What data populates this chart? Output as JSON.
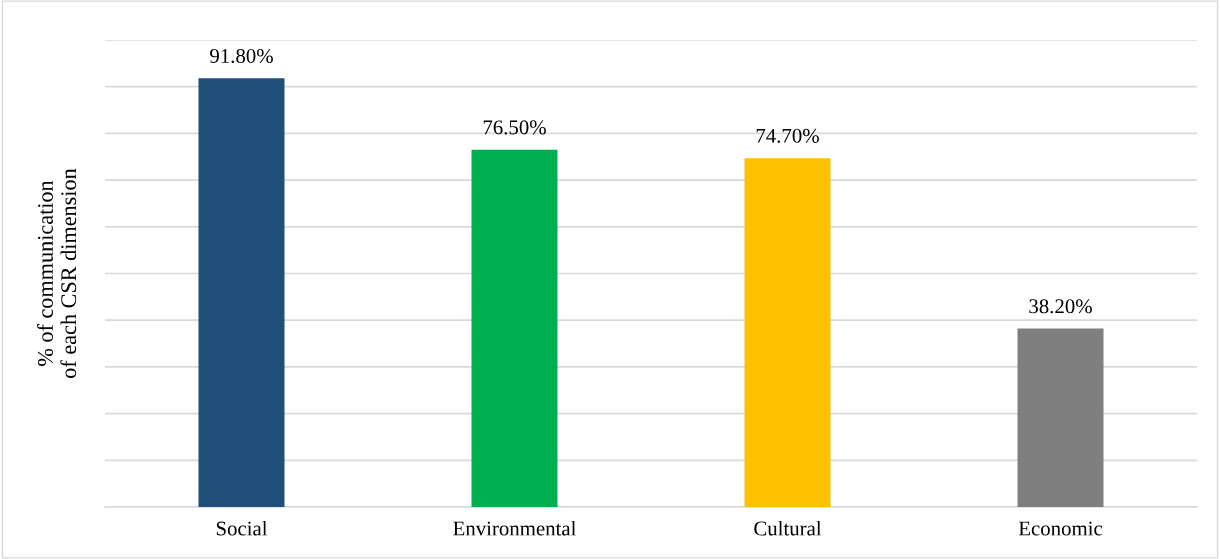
{
  "chart_data": {
    "type": "bar",
    "ylabel": "% of communication\nof each CSR dimension",
    "categories": [
      "Social",
      "Environmental",
      "Cultural",
      "Economic"
    ],
    "values": [
      91.8,
      76.5,
      74.7,
      38.2
    ],
    "value_labels": [
      "91.80%",
      "76.50%",
      "74.70%",
      "38.20%"
    ],
    "colors": [
      "#1f4e79",
      "#00b050",
      "#ffc000",
      "#7f7f7f"
    ],
    "ylim": [
      0,
      100
    ],
    "yticks": [
      {
        "value": 0,
        "label": null
      },
      {
        "value": 10,
        "label": null
      },
      {
        "value": 20,
        "label": null
      },
      {
        "value": 30,
        "label": null
      },
      {
        "value": 40,
        "label": null
      },
      {
        "value": 50,
        "label": null
      },
      {
        "value": 60,
        "label": null
      },
      {
        "value": 70,
        "label": null
      },
      {
        "value": 80,
        "label": null
      },
      {
        "value": 90,
        "label": null
      },
      {
        "value": 100,
        "label": null
      }
    ],
    "grid": "y",
    "tick_labels": "x"
  }
}
